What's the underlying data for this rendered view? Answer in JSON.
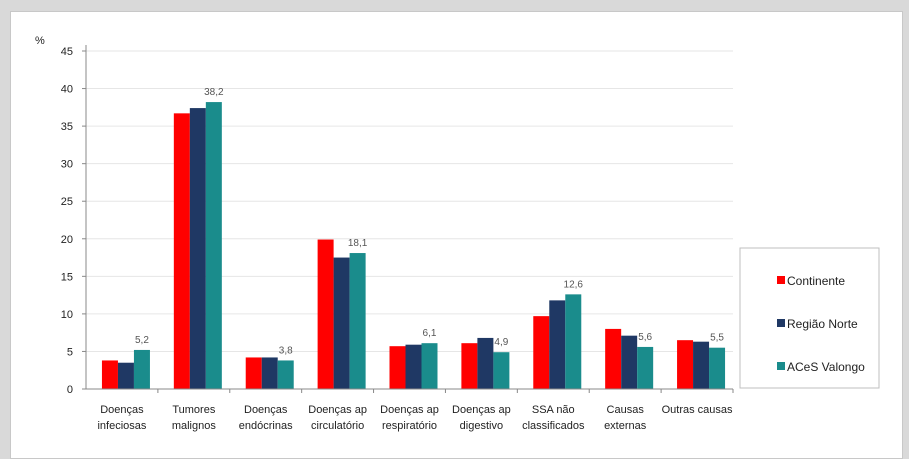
{
  "chart_data": {
    "type": "bar",
    "ylabel": "%",
    "ylim": [
      0,
      45
    ],
    "yticks": [
      0,
      5,
      10,
      15,
      20,
      25,
      30,
      35,
      40,
      45
    ],
    "grid": true,
    "legend_position": "right",
    "categories": [
      [
        "Doenças",
        "infeciosas"
      ],
      [
        "Tumores",
        "malignos"
      ],
      [
        "Doenças",
        "endócrinas"
      ],
      [
        "Doenças ap",
        "circulatório"
      ],
      [
        "Doenças ap",
        "respiratório"
      ],
      [
        "Doenças ap",
        "digestivo"
      ],
      [
        "SSA não",
        "classificados"
      ],
      [
        "Causas",
        "externas"
      ],
      [
        "Outras causas"
      ]
    ],
    "series": [
      {
        "name": "Continente",
        "color": "#ff0000",
        "values": [
          3.8,
          36.7,
          4.2,
          19.9,
          5.7,
          6.1,
          9.7,
          8.0,
          6.5
        ]
      },
      {
        "name": "Região Norte",
        "color": "#1f3864",
        "values": [
          3.5,
          37.4,
          4.2,
          17.5,
          5.9,
          6.8,
          11.8,
          7.1,
          6.3
        ]
      },
      {
        "name": "ACeS Valongo",
        "color": "#1a8c8c",
        "values": [
          5.2,
          38.2,
          3.8,
          18.1,
          6.1,
          4.9,
          12.6,
          5.6,
          5.5
        ]
      }
    ],
    "data_labels": {
      "series": "ACeS Valongo",
      "labels": [
        "5,2",
        "38,2",
        "3,8",
        "18,1",
        "6,1",
        "4,9",
        "12,6",
        "5,6",
        "5,5"
      ]
    }
  }
}
